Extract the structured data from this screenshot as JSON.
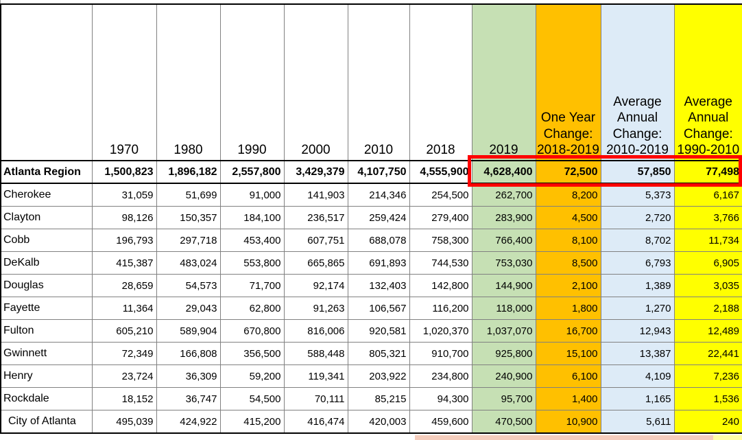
{
  "sheet": {
    "columns": [
      "",
      "1970",
      "1980",
      "1990",
      "2000",
      "2010",
      "2018",
      "2019",
      "One Year Change: 2018-2019",
      "Average Annual Change: 2010-2019",
      "Average Annual Change: 1990-2010"
    ],
    "region_row": {
      "label": "Atlanta Region",
      "values": [
        "1,500,823",
        "1,896,182",
        "2,557,800",
        "3,429,379",
        "4,107,750",
        "4,555,900",
        "4,628,400",
        "72,500",
        "57,850",
        "77,498"
      ]
    },
    "rows": [
      {
        "label": "Cherokee",
        "values": [
          "31,059",
          "51,699",
          "91,000",
          "141,903",
          "214,346",
          "254,500",
          "262,700",
          "8,200",
          "5,373",
          "6,167"
        ]
      },
      {
        "label": "Clayton",
        "values": [
          "98,126",
          "150,357",
          "184,100",
          "236,517",
          "259,424",
          "279,400",
          "283,900",
          "4,500",
          "2,720",
          "3,766"
        ]
      },
      {
        "label": "Cobb",
        "values": [
          "196,793",
          "297,718",
          "453,400",
          "607,751",
          "688,078",
          "758,300",
          "766,400",
          "8,100",
          "8,702",
          "11,734"
        ]
      },
      {
        "label": "DeKalb",
        "values": [
          "415,387",
          "483,024",
          "553,800",
          "665,865",
          "691,893",
          "744,530",
          "753,030",
          "8,500",
          "6,793",
          "6,905"
        ]
      },
      {
        "label": "Douglas",
        "values": [
          "28,659",
          "54,573",
          "71,700",
          "92,174",
          "132,403",
          "142,800",
          "144,900",
          "2,100",
          "1,389",
          "3,035"
        ]
      },
      {
        "label": "Fayette",
        "values": [
          "11,364",
          "29,043",
          "62,800",
          "91,263",
          "106,567",
          "116,200",
          "118,000",
          "1,800",
          "1,270",
          "2,188"
        ]
      },
      {
        "label": "Fulton",
        "values": [
          "605,210",
          "589,904",
          "670,800",
          "816,006",
          "920,581",
          "1,020,370",
          "1,037,070",
          "16,700",
          "12,943",
          "12,489"
        ]
      },
      {
        "label": "Gwinnett",
        "values": [
          "72,349",
          "166,808",
          "356,500",
          "588,448",
          "805,321",
          "910,700",
          "925,800",
          "15,100",
          "13,387",
          "22,441"
        ]
      },
      {
        "label": "Henry",
        "values": [
          "23,724",
          "36,309",
          "59,200",
          "119,341",
          "203,922",
          "234,800",
          "240,900",
          "6,100",
          "4,109",
          "7,236"
        ]
      },
      {
        "label": "Rockdale",
        "values": [
          "18,152",
          "36,747",
          "54,500",
          "70,111",
          "85,215",
          "94,300",
          "95,700",
          "1,400",
          "1,165",
          "1,536"
        ]
      },
      {
        "label": "City of Atlanta",
        "values": [
          "495,039",
          "424,922",
          "415,200",
          "416,474",
          "420,003",
          "459,600",
          "470,500",
          "10,900",
          "5,611",
          "240"
        ],
        "indent": true
      }
    ],
    "colors": {
      "col_2019_green": "#c6e0b4",
      "col_one_year_change_orange": "#ffc000",
      "col_avg_2010_2019_blue": "#ddebf7",
      "col_avg_1990_2010_yellow": "#ffff00",
      "highlight_box_red": "#ff0000",
      "gridline_gray": "#808080",
      "heavy_border_black": "#000000",
      "bottom_peek_salmon": "#f5cdbd",
      "bottom_peek_yellow": "#ffffa6"
    }
  }
}
